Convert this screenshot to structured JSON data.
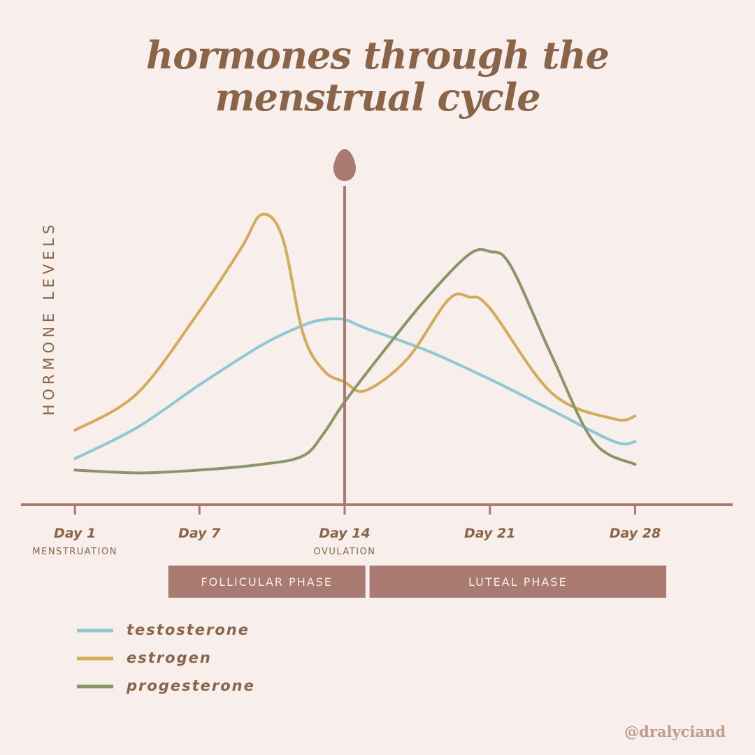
{
  "title_line1": "hormones through the",
  "title_line2": "menstrual cycle",
  "handle": "@dralyciand",
  "colors": {
    "background": "#f8eeeb",
    "axis": "#a87a70",
    "testosterone": "#8ec9d3",
    "estrogen": "#d3ab5a",
    "progesterone": "#8a9668",
    "title": "#8a6448",
    "phase_fill": "#a97a70",
    "phase_text": "#f8eeeb",
    "ovulation_marker": "#a97a70"
  },
  "chart_data": {
    "type": "line",
    "ylabel": "HORMONE LEVELS",
    "xlabel": "",
    "xlim": [
      -1.6,
      32.7
    ],
    "ylim": [
      0,
      100
    ],
    "x_ticks": [
      {
        "x": 1,
        "label": "Day 1",
        "sublabel": "MENSTRUATION"
      },
      {
        "x": 7,
        "label": "Day 7",
        "sublabel": ""
      },
      {
        "x": 14,
        "label": "Day 14",
        "sublabel": "OVULATION"
      },
      {
        "x": 21,
        "label": "Day 21",
        "sublabel": ""
      },
      {
        "x": 28,
        "label": "Day 28",
        "sublabel": ""
      }
    ],
    "ovulation_day": 14,
    "phases": [
      {
        "label": "FOLLICULAR PHASE",
        "start_day": 5.5,
        "end_day": 15
      },
      {
        "label": "LUTEAL PHASE",
        "start_day": 15.2,
        "end_day": 29.5
      }
    ],
    "series": [
      {
        "name": "testosterone",
        "color": "#8ec9d3",
        "x": [
          1,
          4,
          7,
          10,
          12,
          13,
          14,
          15,
          18,
          21,
          24,
          27,
          28
        ],
        "y": [
          14,
          25,
          40,
          54,
          61,
          63,
          63,
          60,
          52,
          42,
          31,
          20,
          20
        ]
      },
      {
        "name": "estrogen",
        "color": "#d3ab5a",
        "x": [
          1,
          4,
          7,
          9,
          10,
          11,
          12,
          13,
          14,
          15,
          17,
          19,
          20,
          21,
          24,
          27,
          28
        ],
        "y": [
          24,
          37,
          66,
          88,
          100,
          92,
          58,
          45,
          41,
          38,
          49,
          70,
          71,
          67,
          37,
          28,
          29
        ]
      },
      {
        "name": "progesterone",
        "color": "#8a9668",
        "x": [
          1,
          4,
          7,
          10,
          12,
          13,
          14,
          16,
          18,
          20,
          21,
          22,
          24,
          26,
          28
        ],
        "y": [
          10,
          9,
          10,
          12,
          15,
          23,
          34,
          53,
          71,
          86,
          87,
          82,
          50,
          20,
          12
        ]
      }
    ]
  }
}
